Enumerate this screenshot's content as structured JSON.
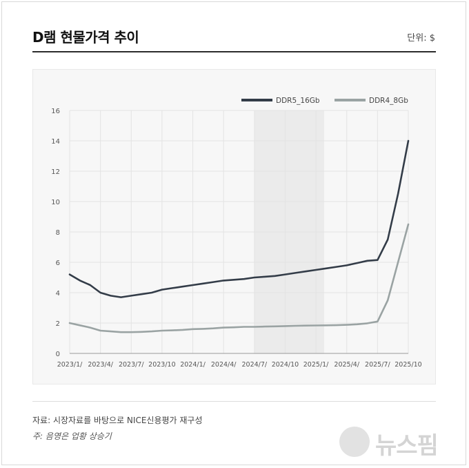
{
  "header": {
    "title": "D램 현물가격 추이",
    "unit": "단위: $"
  },
  "footer": {
    "source": "자료: 시장자료를 바탕으로 NICE신용평가 재구성",
    "note": "주: 음영은 업황 상승기"
  },
  "logo": {
    "text": "뉴스핌"
  },
  "colors": {
    "ddr5": "#333c48",
    "ddr4": "#9aa3a3",
    "shade": "#ebebeb",
    "grid": "#e3e3e3"
  },
  "chart_data": {
    "type": "line",
    "title": "D램 현물가격 추이",
    "xlabel": "",
    "ylabel": "",
    "ylim": [
      0,
      16
    ],
    "yticks": [
      0,
      2,
      4,
      6,
      8,
      10,
      12,
      14,
      16
    ],
    "x_tick_labels": [
      "2023/1/",
      "2023/4/",
      "2023/7/",
      "2023/10",
      "2024/1/",
      "2024/4/",
      "2024/7/",
      "2024/10",
      "2025/1/",
      "2025/4/",
      "2025/7/",
      "2025/10"
    ],
    "grid": true,
    "legend_position": "top-right",
    "shaded_region": {
      "from": 18,
      "to": 24.8
    },
    "series": [
      {
        "name": "DDR5_16Gb",
        "color": "#333c48",
        "points": [
          [
            0,
            5.2
          ],
          [
            1,
            4.8
          ],
          [
            2,
            4.5
          ],
          [
            3,
            4.0
          ],
          [
            4,
            3.8
          ],
          [
            5,
            3.7
          ],
          [
            6,
            3.8
          ],
          [
            7,
            3.9
          ],
          [
            8,
            4.0
          ],
          [
            9,
            4.2
          ],
          [
            10,
            4.3
          ],
          [
            11,
            4.4
          ],
          [
            12,
            4.5
          ],
          [
            13,
            4.6
          ],
          [
            14,
            4.7
          ],
          [
            15,
            4.8
          ],
          [
            16,
            4.85
          ],
          [
            17,
            4.9
          ],
          [
            18,
            5.0
          ],
          [
            19,
            5.05
          ],
          [
            20,
            5.1
          ],
          [
            21,
            5.2
          ],
          [
            22,
            5.3
          ],
          [
            23,
            5.4
          ],
          [
            24,
            5.5
          ],
          [
            25,
            5.6
          ],
          [
            26,
            5.7
          ],
          [
            27,
            5.8
          ],
          [
            28,
            5.95
          ],
          [
            29,
            6.1
          ],
          [
            30,
            6.15
          ],
          [
            31,
            7.5
          ],
          [
            32,
            10.5
          ],
          [
            33,
            14.0
          ]
        ]
      },
      {
        "name": "DDR4_8Gb",
        "color": "#9aa3a3",
        "points": [
          [
            0,
            2.0
          ],
          [
            1,
            1.85
          ],
          [
            2,
            1.7
          ],
          [
            3,
            1.5
          ],
          [
            4,
            1.45
          ],
          [
            5,
            1.4
          ],
          [
            6,
            1.4
          ],
          [
            7,
            1.42
          ],
          [
            8,
            1.45
          ],
          [
            9,
            1.5
          ],
          [
            10,
            1.52
          ],
          [
            11,
            1.55
          ],
          [
            12,
            1.6
          ],
          [
            13,
            1.62
          ],
          [
            14,
            1.65
          ],
          [
            15,
            1.7
          ],
          [
            16,
            1.72
          ],
          [
            17,
            1.75
          ],
          [
            18,
            1.75
          ],
          [
            19,
            1.77
          ],
          [
            20,
            1.78
          ],
          [
            21,
            1.8
          ],
          [
            22,
            1.82
          ],
          [
            23,
            1.83
          ],
          [
            24,
            1.84
          ],
          [
            25,
            1.85
          ],
          [
            26,
            1.86
          ],
          [
            27,
            1.88
          ],
          [
            28,
            1.92
          ],
          [
            29,
            1.98
          ],
          [
            30,
            2.1
          ],
          [
            31,
            3.5
          ],
          [
            32,
            6.0
          ],
          [
            33,
            8.5
          ]
        ]
      }
    ]
  }
}
